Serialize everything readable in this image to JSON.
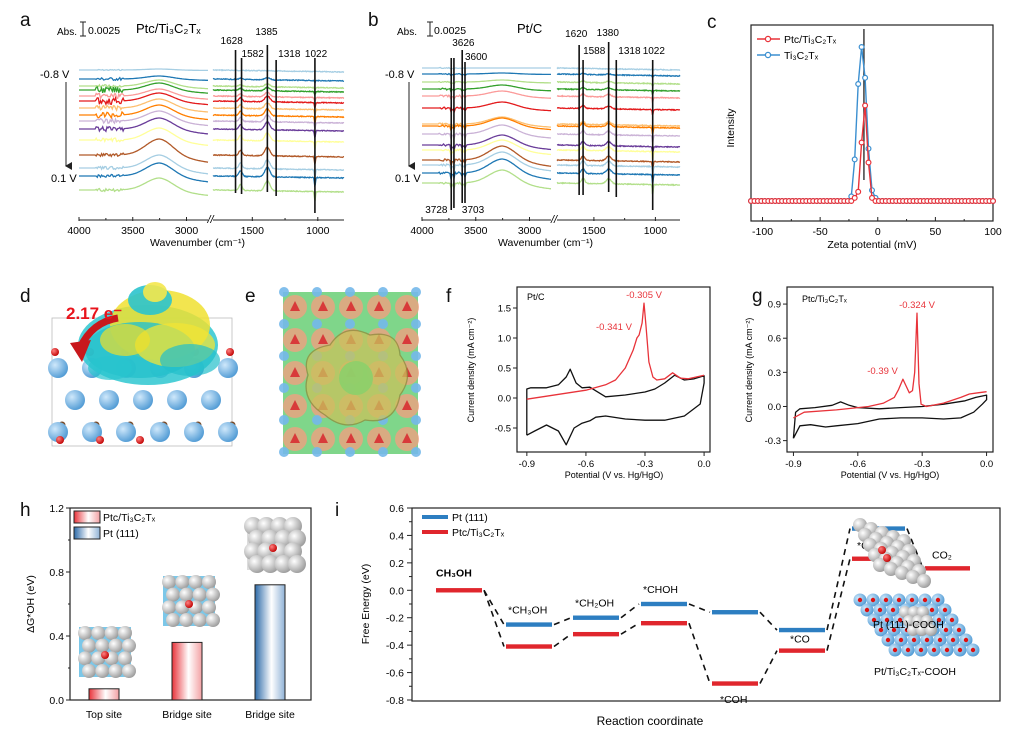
{
  "figure": {
    "panel_labels": [
      "a",
      "b",
      "c",
      "d",
      "e",
      "f",
      "g",
      "h",
      "i"
    ]
  },
  "trace_colors": [
    "#a6cee3",
    "#1f78b4",
    "#b2df8a",
    "#33a02c",
    "#fb9a99",
    "#e31a1c",
    "#fdbf6f",
    "#ff7f00",
    "#cab2d6",
    "#6a3d9a",
    "#ffff99",
    "#b15928",
    "#a6cee3",
    "#1f78b4",
    "#b2df8a"
  ],
  "chart_data": [
    {
      "id": "a",
      "type": "line",
      "title": "Ptc/Ti3C2Tx",
      "title_parts": {
        "main": "Ptc/Ti",
        "sub1": "3",
        "mid": "C",
        "sub2": "2",
        "end": "T",
        "sub3": "x"
      },
      "scale_bar": {
        "label": "Abs.",
        "value": "0.0025"
      },
      "xlabel": "Wavenumber (cm⁻¹)",
      "x_segments": [
        [
          4000,
          2800
        ],
        [
          1800,
          800
        ]
      ],
      "x_ticks": [
        4000,
        3500,
        3000,
        1500,
        1000
      ],
      "x_tick_labels": [
        "4000",
        "3500",
        "3000",
        "1500",
        "1000"
      ],
      "potential_start": "-0.8 V",
      "potential_end": "0.1 V",
      "n_traces": 15,
      "peak_markers": [
        1628,
        1582,
        1385,
        1318,
        1022
      ],
      "peak_labels": [
        "1628",
        "1582",
        "1385",
        "1318",
        "1022"
      ]
    },
    {
      "id": "b",
      "type": "line",
      "title": "Pt/C",
      "scale_bar": {
        "label": "Abs.",
        "value": "0.0025"
      },
      "xlabel": "Wavenumber (cm⁻¹)",
      "x_segments": [
        [
          4000,
          2800
        ],
        [
          1800,
          800
        ]
      ],
      "x_ticks": [
        4000,
        3500,
        3000,
        1500,
        1000
      ],
      "x_tick_labels": [
        "4000",
        "3500",
        "3000",
        "1500",
        "1000"
      ],
      "potential_start": "-0.8 V",
      "potential_end": "0.1 V",
      "n_traces": 15,
      "peak_markers": [
        3728,
        3703,
        3626,
        3600,
        1620,
        1588,
        1380,
        1318,
        1022
      ],
      "peak_labels": [
        "3728",
        "3703",
        "3626",
        "3600",
        "1620",
        "1588",
        "1380",
        "1318",
        "1022"
      ]
    },
    {
      "id": "c",
      "type": "line",
      "xlabel": "Zeta potential (mV)",
      "ylabel": "Intensity",
      "xlim": [
        -110,
        100
      ],
      "x_ticks": [
        -100,
        -50,
        0,
        50,
        100
      ],
      "legend_position": "top-left",
      "vertical_marker": -12,
      "series": [
        {
          "name": "Ptc/Ti3C2Tx",
          "color": "#e8333a",
          "x": [
            -22,
            -19,
            -16,
            -13,
            -10,
            -7,
            -4,
            -1
          ],
          "y": [
            0,
            0.02,
            0.06,
            0.38,
            0.62,
            0.25,
            0.02,
            0
          ]
        },
        {
          "name": "Ti3C2Tx",
          "color": "#3b8fd0",
          "x": [
            -25,
            -22,
            -19,
            -16,
            -13,
            -10,
            -7,
            -4,
            -1,
            2
          ],
          "y": [
            0,
            0.03,
            0.27,
            0.76,
            1.0,
            0.8,
            0.34,
            0.07,
            0.02,
            0
          ]
        }
      ],
      "baseline_x_range": [
        -110,
        100
      ]
    },
    {
      "id": "f",
      "type": "line",
      "inset_label": "Pt/C",
      "xlabel": "Potential (V vs. Hg/HgO)",
      "ylabel": "Current density (mA cm⁻²)",
      "xlim": [
        -0.95,
        0.03
      ],
      "ylim": [
        -0.9,
        1.85
      ],
      "x_ticks": [
        -0.9,
        -0.6,
        -0.3,
        0.0
      ],
      "x_tick_labels": [
        "-0.9",
        "-0.6",
        "-0.3",
        "0.0"
      ],
      "y_ticks": [
        -0.5,
        0.0,
        0.5,
        1.0,
        1.5
      ],
      "y_tick_labels": [
        "-0.5",
        "0.0",
        "0.5",
        "1.0",
        "1.5"
      ],
      "annotations": [
        {
          "text": "-0.305 V",
          "x": -0.305,
          "y": 1.58
        },
        {
          "text": "-0.341 V",
          "x": -0.341,
          "y": 1.05
        }
      ],
      "series": [
        {
          "name": "black CV",
          "color": "#111111",
          "x": [
            -0.9,
            -0.9,
            -0.88,
            -0.8,
            -0.74,
            -0.7,
            -0.68,
            -0.65,
            -0.62,
            -0.58,
            -0.55,
            -0.5,
            -0.4,
            -0.3,
            -0.25,
            -0.2,
            -0.15,
            -0.1,
            -0.05,
            0.0,
            0.0,
            -0.02,
            -0.1,
            -0.2,
            -0.3,
            -0.4,
            -0.5,
            -0.55,
            -0.58,
            -0.62,
            -0.66,
            -0.7,
            -0.74,
            -0.8,
            -0.86,
            -0.9
          ],
          "y": [
            -0.62,
            0.15,
            0.17,
            0.17,
            0.22,
            0.35,
            0.48,
            0.25,
            0.17,
            0.18,
            0.12,
            0.02,
            0.05,
            0.1,
            0.15,
            0.25,
            0.38,
            0.3,
            0.32,
            0.37,
            0.25,
            -0.1,
            -0.3,
            -0.37,
            -0.37,
            -0.35,
            -0.3,
            -0.32,
            -0.38,
            -0.42,
            -0.5,
            -0.78,
            -0.55,
            -0.45,
            -0.55,
            -0.62
          ]
        },
        {
          "name": "red CV",
          "color": "#e8333a",
          "x": [
            -0.9,
            -0.8,
            -0.7,
            -0.6,
            -0.5,
            -0.45,
            -0.4,
            -0.36,
            -0.341,
            -0.33,
            -0.315,
            -0.305,
            -0.295,
            -0.28,
            -0.26,
            -0.24,
            -0.2,
            -0.16,
            -0.12,
            -0.08,
            -0.04,
            0.0
          ],
          "y": [
            -0.02,
            0.03,
            0.08,
            0.13,
            0.22,
            0.3,
            0.5,
            0.8,
            1.0,
            1.05,
            1.25,
            1.58,
            1.2,
            0.6,
            0.35,
            0.3,
            0.32,
            0.42,
            0.33,
            0.32,
            0.35,
            0.38
          ]
        }
      ]
    },
    {
      "id": "g",
      "type": "line",
      "inset_label": "Ptc/Ti3C2Tx",
      "xlabel": "Potential (V vs. Hg/HgO)",
      "ylabel": "Current density (mA cm⁻²)",
      "xlim": [
        -0.93,
        0.03
      ],
      "ylim": [
        -0.4,
        1.05
      ],
      "x_ticks": [
        -0.9,
        -0.6,
        -0.3,
        0.0
      ],
      "x_tick_labels": [
        "-0.9",
        "-0.6",
        "-0.3",
        "0.0"
      ],
      "y_ticks": [
        -0.3,
        0.0,
        0.3,
        0.6,
        0.9
      ],
      "y_tick_labels": [
        "-0.3",
        "0.0",
        "0.3",
        "0.6",
        "0.9"
      ],
      "annotations": [
        {
          "text": "-0.324 V",
          "x": -0.324,
          "y": 0.82
        },
        {
          "text": "-0.39 V",
          "x": -0.39,
          "y": 0.24
        }
      ],
      "series": [
        {
          "name": "black CV",
          "color": "#111111",
          "x": [
            -0.9,
            -0.89,
            -0.87,
            -0.8,
            -0.72,
            -0.68,
            -0.64,
            -0.6,
            -0.5,
            -0.4,
            -0.3,
            -0.2,
            -0.1,
            -0.05,
            0.0,
            0.0,
            -0.02,
            -0.06,
            -0.12,
            -0.2,
            -0.3,
            -0.4,
            -0.5,
            -0.6,
            -0.7,
            -0.75,
            -0.82,
            -0.87,
            -0.9
          ],
          "y": [
            -0.28,
            -0.05,
            -0.02,
            -0.01,
            0.01,
            0.04,
            0.01,
            -0.01,
            -0.02,
            -0.01,
            0.0,
            0.02,
            0.05,
            0.08,
            0.1,
            0.06,
            0.02,
            -0.05,
            -0.1,
            -0.11,
            -0.1,
            -0.1,
            -0.11,
            -0.15,
            -0.17,
            -0.18,
            -0.16,
            -0.17,
            -0.28
          ]
        },
        {
          "name": "red CV",
          "color": "#e8333a",
          "x": [
            -0.9,
            -0.85,
            -0.7,
            -0.55,
            -0.48,
            -0.43,
            -0.41,
            -0.39,
            -0.375,
            -0.36,
            -0.345,
            -0.335,
            -0.324,
            -0.315,
            -0.305,
            -0.28,
            -0.2,
            -0.12,
            -0.08,
            -0.04,
            0.0
          ],
          "y": [
            -0.1,
            -0.05,
            -0.03,
            0.0,
            0.03,
            0.08,
            0.15,
            0.24,
            0.18,
            0.12,
            0.14,
            0.3,
            0.82,
            0.2,
            0.02,
            0.0,
            0.03,
            0.08,
            0.11,
            0.12,
            0.13
          ]
        }
      ]
    },
    {
      "id": "h",
      "type": "bar",
      "ylabel": "ΔG*OH (eV)",
      "ylim": [
        0,
        1.2
      ],
      "y_ticks": [
        0.0,
        0.4,
        0.8,
        1.2
      ],
      "y_tick_labels": [
        "0.0",
        "0.4",
        "0.8",
        "1.2"
      ],
      "categories": [
        "Top site",
        "Bridge site",
        "Bridge site"
      ],
      "values": [
        0.07,
        0.36,
        0.72
      ],
      "bar_series": [
        "Ptc/Ti3C2Tx",
        "Ptc/Ti3C2Tx",
        "Pt (111)"
      ],
      "legend": [
        {
          "name": "Ptc/Ti3C2Tx",
          "color": "#e8333a"
        },
        {
          "name": "Pt (111)",
          "color": "#2d6aa8"
        }
      ],
      "legend_position": "top-left"
    },
    {
      "id": "i",
      "type": "line",
      "subtype": "energy-diagram",
      "xlabel": "Reaction coordinate",
      "ylabel": "Free Energy (eV)",
      "ylim": [
        -0.8,
        0.6
      ],
      "y_ticks": [
        -0.8,
        -0.6,
        -0.4,
        -0.2,
        0.0,
        0.2,
        0.4,
        0.6
      ],
      "y_tick_labels": [
        "-0.8",
        "-0.6",
        "-0.4",
        "-0.2",
        "0.0",
        "0.2",
        "0.4",
        "0.6"
      ],
      "legend": [
        {
          "name": "Pt (111)",
          "color": "#2d7ec1"
        },
        {
          "name": "Ptc/Ti3C2Tx",
          "color": "#e0262d"
        }
      ],
      "legend_position": "top-left",
      "steps": [
        "CH3OH",
        "*CH3OH",
        "*CH2OH",
        "*CHOH",
        "*COH",
        "*CO",
        "*COOH",
        "CO2"
      ],
      "step_labels": [
        {
          "text": "CH₃OH",
          "step": 0
        },
        {
          "text": "*CH₃OH",
          "step": 1
        },
        {
          "text": "*CH₂OH",
          "step": 2
        },
        {
          "text": "*CHOH",
          "step": 3
        },
        {
          "text": "*COH",
          "step": 4
        },
        {
          "text": "*CO",
          "step": 5
        },
        {
          "text": "*COOH",
          "step": 6
        },
        {
          "text": "CO₂",
          "step": 7
        }
      ],
      "series": [
        {
          "name": "Pt (111)",
          "color": "#2d7ec1",
          "values": [
            null,
            -0.25,
            -0.2,
            -0.1,
            -0.16,
            -0.29,
            0.45,
            null
          ]
        },
        {
          "name": "Ptc/Ti3C2Tx",
          "color": "#e0262d",
          "values": [
            0.0,
            -0.41,
            -0.32,
            -0.24,
            -0.68,
            -0.44,
            0.23,
            0.16
          ]
        }
      ],
      "inset_labels": [
        "Pt (111)-COOH",
        "Pt/Ti3C2Tx-COOH"
      ]
    }
  ],
  "panel_d": {
    "annotation": "2.17 e⁻"
  },
  "texts": {
    "abs": "Abs.",
    "scale": "0.0025",
    "a_title": "Ptc/Ti₃C₂Tₓ",
    "b_title": "Pt/C",
    "v_start": "-0.8 V",
    "v_end": "0.1 V",
    "c_leg1": "Ptc/Ti₃C₂Tₓ",
    "c_leg2": "Ti₃C₂Tₓ",
    "g_inset": "Ptc/Ti₃C₂Tₓ",
    "h_leg1": "Ptc/Ti₃C₂Tₓ",
    "h_leg2": "Pt (111)",
    "i_leg1": "Pt (111)",
    "i_leg2": "Ptc/Ti₃C₂Tₓ",
    "i_inset1": "Pt (111)-COOH",
    "i_inset2": "Pt/Ti₃C₂Tₓ-COOH"
  }
}
